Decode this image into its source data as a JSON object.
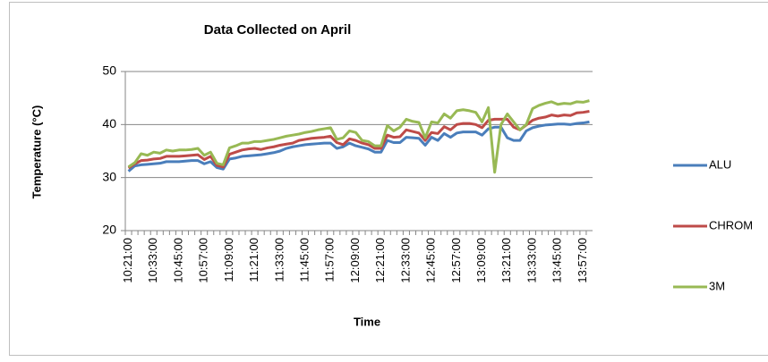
{
  "chart_data": {
    "type": "line",
    "title": "Data Collected on April",
    "x_label": "Time",
    "y_label": "Temperature (°C)",
    "categories": [
      "10:21:00",
      null,
      null,
      null,
      "10:33:00",
      null,
      null,
      null,
      "10:45:00",
      null,
      null,
      null,
      "10:57:00",
      null,
      null,
      null,
      "11:09:00",
      null,
      null,
      null,
      "11:21:00",
      null,
      null,
      null,
      "11:33:00",
      null,
      null,
      null,
      "11:45:00",
      null,
      null,
      null,
      "11:57:00",
      null,
      null,
      null,
      "12:09:00",
      null,
      null,
      null,
      "12:21:00",
      null,
      null,
      null,
      "12:33:00",
      null,
      null,
      null,
      "12:45:00",
      null,
      null,
      null,
      "12:57:00",
      null,
      null,
      null,
      "13:09:00",
      null,
      null,
      null,
      "13:21:00",
      null,
      null,
      null,
      "13:33:00",
      null,
      null,
      null,
      "13:45:00",
      null,
      null,
      null,
      "13:57:00",
      null
    ],
    "series": [
      {
        "name": "ALU",
        "color": "#4a7ebb",
        "values": [
          31.2,
          32.2,
          32.4,
          32.5,
          32.6,
          32.7,
          33,
          33,
          33,
          33.1,
          33.2,
          33.2,
          32.6,
          33,
          31.9,
          31.6,
          33.5,
          33.7,
          34,
          34.1,
          34.2,
          34.3,
          34.5,
          34.7,
          35,
          35.5,
          35.8,
          36,
          36.2,
          36.3,
          36.4,
          36.5,
          36.5,
          35.5,
          35.8,
          36.5,
          36,
          35.7,
          35.4,
          34.8,
          34.8,
          37,
          36.6,
          36.6,
          37.6,
          37.5,
          37.4,
          36.1,
          37.6,
          37,
          38.3,
          37.6,
          38.4,
          38.6,
          38.6,
          38.6,
          38,
          39.2,
          39.5,
          39.5,
          37.5,
          37,
          37,
          38.8,
          39.4,
          39.7,
          39.9,
          40,
          40.1,
          40.1,
          40,
          40.2,
          40.3,
          40.5
        ]
      },
      {
        "name": "CHROM",
        "color": "#be4b48",
        "values": [
          31.8,
          32.6,
          33.2,
          33.3,
          33.5,
          33.6,
          34,
          34,
          34,
          34.1,
          34.2,
          34.3,
          33.4,
          34,
          32.3,
          32,
          34.4,
          34.8,
          35.2,
          35.4,
          35.5,
          35.3,
          35.6,
          35.8,
          36.1,
          36.3,
          36.5,
          37,
          37.2,
          37.4,
          37.5,
          37.6,
          37.8,
          36.6,
          36.2,
          37.3,
          37,
          36.5,
          36.2,
          35.5,
          35.5,
          38,
          37.6,
          37.7,
          39,
          38.7,
          38.4,
          37,
          38.5,
          38.3,
          39.6,
          39,
          40,
          40.2,
          40.2,
          40,
          39.4,
          40.8,
          41,
          41,
          41,
          39.5,
          39,
          39.9,
          40.8,
          41.2,
          41.4,
          41.8,
          41.6,
          41.8,
          41.7,
          42.2,
          42.3,
          42.5
        ]
      },
      {
        "name": "3M",
        "color": "#98b954",
        "values": [
          32,
          32.8,
          34.5,
          34.2,
          34.8,
          34.6,
          35.2,
          35,
          35.2,
          35.2,
          35.3,
          35.5,
          34.2,
          34.8,
          32.7,
          32.4,
          35.6,
          36,
          36.5,
          36.5,
          36.8,
          36.8,
          37,
          37.2,
          37.5,
          37.8,
          38,
          38.2,
          38.5,
          38.7,
          39,
          39.2,
          39.4,
          37.2,
          37.5,
          38.8,
          38.5,
          37,
          36.8,
          36,
          36,
          39.8,
          38.8,
          39.5,
          41,
          40.6,
          40.4,
          37.5,
          40.5,
          40.3,
          42,
          41.2,
          42.6,
          42.8,
          42.6,
          42.3,
          40.5,
          43.2,
          31,
          40,
          42,
          40.5,
          39,
          40,
          43,
          43.6,
          44,
          44.3,
          43.8,
          44,
          43.9,
          44.3,
          44.2,
          44.5
        ]
      }
    ],
    "ylim": [
      20,
      50
    ],
    "yticks": [
      20,
      30,
      40,
      50
    ],
    "grid": true,
    "legend": "right"
  }
}
